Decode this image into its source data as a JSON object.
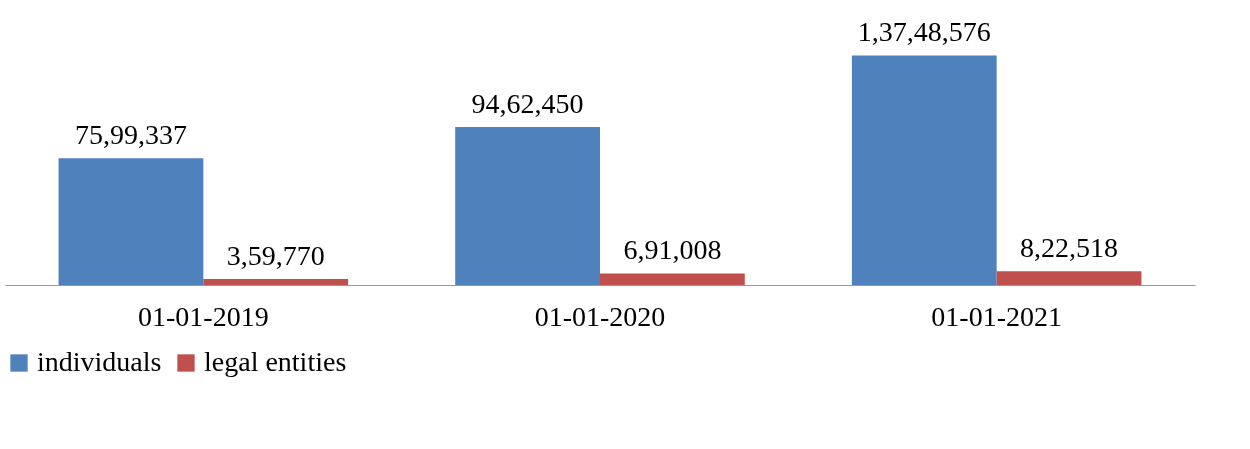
{
  "chart_data": {
    "type": "bar",
    "categories": [
      "01-01-2019",
      "01-01-2020",
      "01-01-2021"
    ],
    "series": [
      {
        "name": "individuals",
        "color": "#4f81bd",
        "values": [
          7599337,
          9462450,
          13748576
        ],
        "value_labels": [
          "75,99,337",
          "94,62,450",
          "1,37,48,576"
        ]
      },
      {
        "name": "legal entities",
        "color": "#c0504d",
        "values": [
          359770,
          691008,
          822518
        ],
        "value_labels": [
          "3,59,770",
          "6,91,008",
          "8,22,518"
        ]
      }
    ],
    "legend": "bottom",
    "grid": false
  }
}
